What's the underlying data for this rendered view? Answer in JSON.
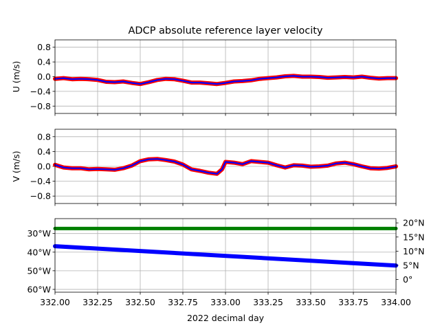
{
  "chart_data": {
    "type": "line",
    "title": "ADCP absolute reference layer velocity",
    "xlabel": "2022 decimal day",
    "xlim": [
      332.0,
      334.0
    ],
    "x_ticks": [
      "332.00",
      "332.25",
      "332.50",
      "332.75",
      "333.00",
      "333.25",
      "333.50",
      "333.75",
      "334.00"
    ],
    "grid": true,
    "panels": [
      {
        "name": "u-panel",
        "ylabel": "U (m/s)",
        "ylim": [
          -1.0,
          1.0
        ],
        "y_ticks": [
          0.8,
          0.4,
          0.0,
          -0.4,
          -0.8
        ],
        "y_tick_labels": [
          "0.8",
          "0.4",
          "0.0",
          "−0.4",
          "−0.8"
        ],
        "series": [
          {
            "color": "#ff0000",
            "x": [
              332.0,
              332.05,
              332.1,
              332.15,
              332.2,
              332.25,
              332.3,
              332.35,
              332.4,
              332.45,
              332.5,
              332.55,
              332.6,
              332.65,
              332.7,
              332.75,
              332.8,
              332.85,
              332.9,
              332.95,
              333.0,
              333.05,
              333.1,
              333.15,
              333.2,
              333.25,
              333.3,
              333.35,
              333.4,
              333.45,
              333.5,
              333.55,
              333.6,
              333.65,
              333.7,
              333.75,
              333.8,
              333.85,
              333.9,
              333.95,
              334.0
            ],
            "y": [
              -0.06,
              -0.04,
              -0.07,
              -0.06,
              -0.07,
              -0.09,
              -0.14,
              -0.15,
              -0.13,
              -0.17,
              -0.2,
              -0.15,
              -0.09,
              -0.06,
              -0.07,
              -0.11,
              -0.16,
              -0.16,
              -0.18,
              -0.2,
              -0.17,
              -0.13,
              -0.12,
              -0.1,
              -0.06,
              -0.04,
              -0.02,
              0.01,
              0.02,
              0.0,
              0.0,
              -0.01,
              -0.03,
              -0.02,
              -0.01,
              -0.02,
              0.0,
              -0.03,
              -0.05,
              -0.04,
              -0.04
            ]
          },
          {
            "color": "#0000ff",
            "x": [
              332.0,
              332.05,
              332.1,
              332.15,
              332.2,
              332.25,
              332.3,
              332.35,
              332.4,
              332.45,
              332.5,
              332.55,
              332.6,
              332.65,
              332.7,
              332.75,
              332.8,
              332.85,
              332.9,
              332.95,
              333.0,
              333.05,
              333.1,
              333.15,
              333.2,
              333.25,
              333.3,
              333.35,
              333.4,
              333.45,
              333.5,
              333.55,
              333.6,
              333.65,
              333.7,
              333.75,
              333.8,
              333.85,
              333.9,
              333.95,
              334.0
            ],
            "y": [
              -0.06,
              -0.04,
              -0.07,
              -0.06,
              -0.07,
              -0.09,
              -0.14,
              -0.15,
              -0.13,
              -0.17,
              -0.2,
              -0.15,
              -0.09,
              -0.06,
              -0.07,
              -0.11,
              -0.16,
              -0.16,
              -0.18,
              -0.2,
              -0.17,
              -0.13,
              -0.12,
              -0.1,
              -0.06,
              -0.04,
              -0.02,
              0.01,
              0.02,
              0.0,
              0.0,
              -0.01,
              -0.03,
              -0.02,
              -0.01,
              -0.02,
              0.0,
              -0.03,
              -0.05,
              -0.04,
              -0.04
            ]
          }
        ]
      },
      {
        "name": "v-panel",
        "ylabel": "V (m/s)",
        "ylim": [
          -1.0,
          1.0
        ],
        "y_ticks": [
          0.8,
          0.4,
          0.0,
          -0.4,
          -0.8
        ],
        "y_tick_labels": [
          "0.8",
          "0.4",
          "0.0",
          "−0.4",
          "−0.8"
        ],
        "series": [
          {
            "color": "#ff0000",
            "x": [
              332.0,
              332.05,
              332.1,
              332.15,
              332.2,
              332.25,
              332.3,
              332.35,
              332.4,
              332.45,
              332.5,
              332.55,
              332.6,
              332.65,
              332.7,
              332.75,
              332.8,
              332.85,
              332.9,
              332.95,
              332.98,
              333.0,
              333.05,
              333.1,
              333.15,
              333.2,
              333.25,
              333.3,
              333.35,
              333.4,
              333.45,
              333.5,
              333.55,
              333.6,
              333.65,
              333.7,
              333.75,
              333.8,
              333.85,
              333.9,
              333.95,
              334.0
            ],
            "y": [
              0.04,
              -0.03,
              -0.05,
              -0.05,
              -0.08,
              -0.07,
              -0.08,
              -0.09,
              -0.05,
              0.02,
              0.14,
              0.19,
              0.2,
              0.17,
              0.13,
              0.05,
              -0.08,
              -0.12,
              -0.17,
              -0.2,
              -0.08,
              0.12,
              0.1,
              0.06,
              0.14,
              0.12,
              0.1,
              0.03,
              -0.03,
              0.03,
              0.02,
              -0.01,
              0.0,
              0.02,
              0.08,
              0.1,
              0.06,
              0.0,
              -0.05,
              -0.06,
              -0.04,
              0.0
            ]
          },
          {
            "color": "#0000ff",
            "x": [
              332.0,
              332.05,
              332.1,
              332.15,
              332.2,
              332.25,
              332.3,
              332.35,
              332.4,
              332.45,
              332.5,
              332.55,
              332.6,
              332.65,
              332.7,
              332.75,
              332.8,
              332.85,
              332.9,
              332.95,
              332.98,
              333.0,
              333.05,
              333.1,
              333.15,
              333.2,
              333.25,
              333.3,
              333.35,
              333.4,
              333.45,
              333.5,
              333.55,
              333.6,
              333.65,
              333.7,
              333.75,
              333.8,
              333.85,
              333.9,
              333.95,
              334.0
            ],
            "y": [
              0.04,
              -0.03,
              -0.05,
              -0.05,
              -0.08,
              -0.07,
              -0.08,
              -0.09,
              -0.05,
              0.02,
              0.14,
              0.19,
              0.2,
              0.17,
              0.13,
              0.05,
              -0.08,
              -0.12,
              -0.17,
              -0.2,
              -0.08,
              0.12,
              0.1,
              0.06,
              0.14,
              0.12,
              0.1,
              0.03,
              -0.03,
              0.03,
              0.02,
              -0.01,
              0.0,
              0.02,
              0.08,
              0.1,
              0.06,
              0.0,
              -0.05,
              -0.06,
              -0.04,
              0.0
            ]
          }
        ]
      },
      {
        "name": "position-panel",
        "ylim_left": [
          -61.5,
          -22
        ],
        "y_ticks_left": [
          -30,
          -40,
          -50,
          -60
        ],
        "y_tick_labels_left": [
          "30°W",
          "40°W",
          "50°W",
          "60°W"
        ],
        "left_label_color": "#0000ff",
        "ylim_right": [
          -4.5,
          21.5
        ],
        "y_ticks_right": [
          20,
          15,
          10,
          5,
          0
        ],
        "y_tick_labels_right": [
          "20°N",
          "15°N",
          "10°N",
          "5°N",
          "0°"
        ],
        "right_label_color": "#008000",
        "series": [
          {
            "axis": "left",
            "color": "#0000ff",
            "x": [
              332.0,
              334.0
            ],
            "y": [
              -36.8,
              -47.2
            ]
          },
          {
            "axis": "right",
            "color": "#008000",
            "x": [
              332.0,
              334.0
            ],
            "y": [
              18.0,
              18.0
            ]
          }
        ]
      }
    ]
  }
}
